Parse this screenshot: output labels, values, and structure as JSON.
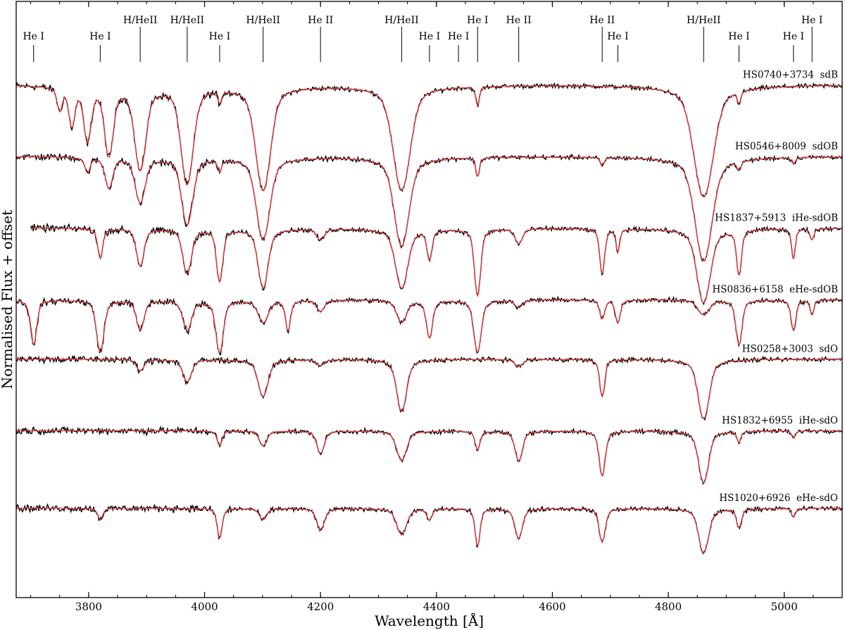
{
  "chart_data": {
    "type": "line",
    "xlabel": "Wavelength [Å]",
    "ylabel": "Normalised Flux + offset",
    "xlim": [
      3675,
      5100
    ],
    "xticks": [
      3800,
      4000,
      4200,
      4400,
      4600,
      4800,
      5000
    ],
    "xtick_labels": [
      "3800",
      "4000",
      "4200",
      "4400",
      "4600",
      "4800",
      "5000"
    ],
    "yticks_shown": false,
    "grid": false,
    "colors": {
      "observed": "#000000",
      "model": "#e8393a"
    },
    "line_ids": [
      {
        "label": "He I",
        "wavelength": 3705,
        "row": 2
      },
      {
        "label": "He I",
        "wavelength": 3820,
        "row": 2
      },
      {
        "label": "H/HeII",
        "wavelength": 3889,
        "row": 1
      },
      {
        "label": "H/HeII",
        "wavelength": 3970,
        "row": 1
      },
      {
        "label": "He I",
        "wavelength": 4026,
        "row": 2
      },
      {
        "label": "H/HeII",
        "wavelength": 4101,
        "row": 1
      },
      {
        "label": "He II",
        "wavelength": 4200,
        "row": 1
      },
      {
        "label": "H/HeII",
        "wavelength": 4340,
        "row": 1
      },
      {
        "label": "He I",
        "wavelength": 4388,
        "row": 2
      },
      {
        "label": "He I",
        "wavelength": 4438,
        "row": 2
      },
      {
        "label": "He I",
        "wavelength": 4471,
        "row": 1
      },
      {
        "label": "He II",
        "wavelength": 4542,
        "row": 1
      },
      {
        "label": "He II",
        "wavelength": 4686,
        "row": 1
      },
      {
        "label": "He I",
        "wavelength": 4713,
        "row": 2
      },
      {
        "label": "H/HeII",
        "wavelength": 4861,
        "row": 1
      },
      {
        "label": "He I",
        "wavelength": 4922,
        "row": 2
      },
      {
        "label": "He I",
        "wavelength": 5016,
        "row": 2
      },
      {
        "label": "He I",
        "wavelength": 5048,
        "row": 1
      }
    ],
    "spectra": [
      {
        "name": "HS0740+3734  sdB",
        "continuum_y": 0.86,
        "lines": [
          [
            3750,
            0.03,
            4
          ],
          [
            3771,
            0.05,
            5
          ],
          [
            3798,
            0.07,
            6
          ],
          [
            3835,
            0.09,
            7
          ],
          [
            3889,
            0.11,
            9
          ],
          [
            3970,
            0.13,
            10
          ],
          [
            4026,
            0.015,
            3
          ],
          [
            4101,
            0.14,
            12
          ],
          [
            4340,
            0.14,
            14
          ],
          [
            4471,
            0.025,
            3
          ],
          [
            4861,
            0.15,
            16
          ],
          [
            4922,
            0.015,
            3
          ]
        ]
      },
      {
        "name": "HS0546+8009  sdOB",
        "continuum_y": 0.74,
        "lines": [
          [
            3798,
            0.02,
            4
          ],
          [
            3835,
            0.04,
            6
          ],
          [
            3889,
            0.06,
            8
          ],
          [
            3970,
            0.09,
            9
          ],
          [
            4026,
            0.015,
            3
          ],
          [
            4101,
            0.11,
            11
          ],
          [
            4340,
            0.12,
            12
          ],
          [
            4471,
            0.025,
            3
          ],
          [
            4686,
            0.012,
            3
          ],
          [
            4861,
            0.14,
            14
          ],
          [
            4922,
            0.012,
            3
          ],
          [
            5016,
            0.008,
            3
          ]
        ]
      },
      {
        "name": "HS1837+5913  iHe-sdOB",
        "continuum_y": 0.62,
        "lines": [
          [
            3820,
            0.04,
            4
          ],
          [
            3889,
            0.05,
            6
          ],
          [
            3970,
            0.06,
            7
          ],
          [
            4026,
            0.07,
            5
          ],
          [
            4101,
            0.08,
            8
          ],
          [
            4200,
            0.015,
            6
          ],
          [
            4340,
            0.08,
            10
          ],
          [
            4388,
            0.04,
            4
          ],
          [
            4471,
            0.09,
            5
          ],
          [
            4542,
            0.02,
            6
          ],
          [
            4686,
            0.06,
            4
          ],
          [
            4713,
            0.03,
            3
          ],
          [
            4861,
            0.1,
            11
          ],
          [
            4922,
            0.06,
            4
          ],
          [
            5016,
            0.04,
            3
          ],
          [
            5048,
            0.015,
            3
          ]
        ]
      },
      {
        "name": "HS0836+6158  eHe-sdOB",
        "continuum_y": 0.5,
        "lines": [
          [
            3705,
            0.06,
            5
          ],
          [
            3820,
            0.07,
            6
          ],
          [
            3889,
            0.04,
            6
          ],
          [
            3970,
            0.04,
            7
          ],
          [
            4026,
            0.07,
            6
          ],
          [
            4101,
            0.03,
            8
          ],
          [
            4144,
            0.04,
            4
          ],
          [
            4200,
            0.015,
            6
          ],
          [
            4340,
            0.03,
            8
          ],
          [
            4388,
            0.05,
            5
          ],
          [
            4471,
            0.07,
            6
          ],
          [
            4542,
            0.01,
            6
          ],
          [
            4686,
            0.025,
            4
          ],
          [
            4713,
            0.03,
            4
          ],
          [
            4861,
            0.02,
            9
          ],
          [
            4922,
            0.06,
            5
          ],
          [
            5016,
            0.04,
            4
          ],
          [
            5048,
            0.02,
            3
          ]
        ]
      },
      {
        "name": "HS0258+3003  sdO",
        "continuum_y": 0.4,
        "lines": [
          [
            3889,
            0.015,
            6
          ],
          [
            3970,
            0.03,
            7
          ],
          [
            4101,
            0.05,
            8
          ],
          [
            4200,
            0.008,
            6
          ],
          [
            4340,
            0.07,
            8
          ],
          [
            4542,
            0.01,
            6
          ],
          [
            4686,
            0.05,
            4
          ],
          [
            4861,
            0.08,
            9
          ]
        ]
      },
      {
        "name": "HS1832+6955  iHe-sdO",
        "continuum_y": 0.28,
        "lines": [
          [
            4026,
            0.02,
            4
          ],
          [
            4101,
            0.02,
            6
          ],
          [
            4200,
            0.03,
            6
          ],
          [
            4340,
            0.04,
            8
          ],
          [
            4471,
            0.025,
            4
          ],
          [
            4542,
            0.04,
            6
          ],
          [
            4686,
            0.06,
            5
          ],
          [
            4861,
            0.07,
            8
          ],
          [
            4922,
            0.015,
            3
          ],
          [
            5016,
            0.01,
            3
          ]
        ]
      },
      {
        "name": "HS1020+6926  eHe-sdO",
        "continuum_y": 0.15,
        "lines": [
          [
            3820,
            0.015,
            4
          ],
          [
            4026,
            0.04,
            4
          ],
          [
            4101,
            0.015,
            6
          ],
          [
            4200,
            0.03,
            6
          ],
          [
            4340,
            0.035,
            8
          ],
          [
            4388,
            0.015,
            4
          ],
          [
            4471,
            0.05,
            4
          ],
          [
            4542,
            0.04,
            6
          ],
          [
            4686,
            0.045,
            5
          ],
          [
            4861,
            0.06,
            8
          ],
          [
            4922,
            0.025,
            4
          ],
          [
            5016,
            0.012,
            3
          ]
        ]
      }
    ]
  }
}
